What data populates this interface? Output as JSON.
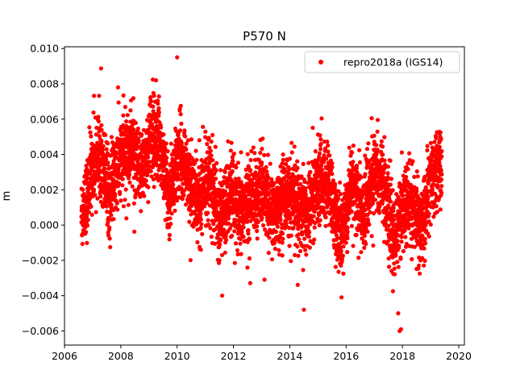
{
  "chart_data": {
    "type": "scatter",
    "title": "P570 N",
    "xlabel": "",
    "ylabel": "m",
    "xlim": [
      2006.0,
      2020.2
    ],
    "ylim": [
      -0.0068,
      0.0101
    ],
    "xticks": [
      2006,
      2008,
      2010,
      2012,
      2014,
      2016,
      2018,
      2020
    ],
    "xtick_labels": [
      "2006",
      "2008",
      "2010",
      "2012",
      "2014",
      "2016",
      "2018",
      "2020"
    ],
    "yticks": [
      -0.006,
      -0.004,
      -0.002,
      0.0,
      0.002,
      0.004,
      0.006,
      0.008,
      0.01
    ],
    "ytick_labels": [
      "−0.006",
      "−0.004",
      "−0.002",
      "0.000",
      "0.002",
      "0.004",
      "0.006",
      "0.008",
      "0.010"
    ],
    "grid": false,
    "legend": {
      "position": "top-right",
      "entries": [
        "repro2018a (IGS14)"
      ]
    },
    "series": [
      {
        "name": "repro2018a (IGS14)",
        "color": "#ff0000",
        "marker": "circle",
        "x_range": [
          2006.6,
          2019.4
        ],
        "y_range": [
          -0.006,
          0.0095
        ],
        "trend_profile": [
          {
            "x": 2006.6,
            "y": 0.0005
          },
          {
            "x": 2006.8,
            "y": 0.0015
          },
          {
            "x": 2007.0,
            "y": 0.0035
          },
          {
            "x": 2007.3,
            "y": 0.0042
          },
          {
            "x": 2007.6,
            "y": 0.0015
          },
          {
            "x": 2008.0,
            "y": 0.0038
          },
          {
            "x": 2008.4,
            "y": 0.0045
          },
          {
            "x": 2008.7,
            "y": 0.0028
          },
          {
            "x": 2009.1,
            "y": 0.0052
          },
          {
            "x": 2009.4,
            "y": 0.0046
          },
          {
            "x": 2009.7,
            "y": 0.0015
          },
          {
            "x": 2010.1,
            "y": 0.0042
          },
          {
            "x": 2010.5,
            "y": 0.002
          },
          {
            "x": 2010.8,
            "y": 0.0012
          },
          {
            "x": 2011.1,
            "y": 0.003
          },
          {
            "x": 2011.5,
            "y": 0.0002
          },
          {
            "x": 2011.9,
            "y": 0.0018
          },
          {
            "x": 2012.2,
            "y": 0.0005
          },
          {
            "x": 2012.6,
            "y": 0.0015
          },
          {
            "x": 2013.0,
            "y": 0.002
          },
          {
            "x": 2013.4,
            "y": 0.0005
          },
          {
            "x": 2013.8,
            "y": 0.0018
          },
          {
            "x": 2014.2,
            "y": 0.0012
          },
          {
            "x": 2014.6,
            "y": 0.0005
          },
          {
            "x": 2015.0,
            "y": 0.0025
          },
          {
            "x": 2015.4,
            "y": 0.0022
          },
          {
            "x": 2015.8,
            "y": -0.001
          },
          {
            "x": 2016.2,
            "y": 0.0025
          },
          {
            "x": 2016.6,
            "y": 0.0005
          },
          {
            "x": 2017.0,
            "y": 0.003
          },
          {
            "x": 2017.3,
            "y": 0.0025
          },
          {
            "x": 2017.7,
            "y": -0.001
          },
          {
            "x": 2018.0,
            "y": 0.0012
          },
          {
            "x": 2018.4,
            "y": 0.0008
          },
          {
            "x": 2018.7,
            "y": -0.0002
          },
          {
            "x": 2019.0,
            "y": 0.0025
          },
          {
            "x": 2019.4,
            "y": 0.0035
          }
        ],
        "notable_points": [
          {
            "x": 2010.0,
            "y": 0.0095
          },
          {
            "x": 2017.9,
            "y": -0.006
          },
          {
            "x": 2017.95,
            "y": -0.0059
          },
          {
            "x": 2017.85,
            "y": -0.005
          },
          {
            "x": 2014.5,
            "y": -0.0048
          },
          {
            "x": 2011.6,
            "y": -0.004
          },
          {
            "x": 2009.25,
            "y": 0.0082
          },
          {
            "x": 2007.9,
            "y": 0.0078
          }
        ]
      }
    ]
  }
}
